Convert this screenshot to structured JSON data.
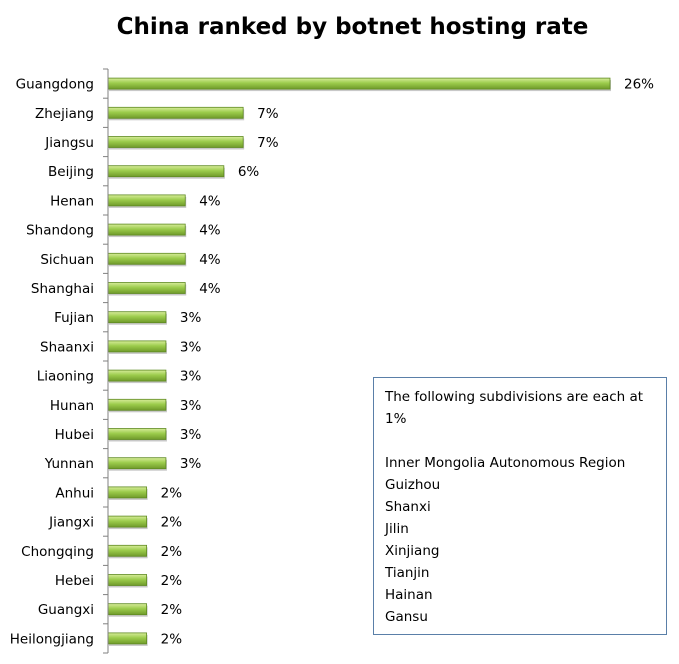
{
  "chart_data": {
    "type": "bar",
    "orientation": "horizontal",
    "title": "China ranked by botnet hosting rate",
    "categories": [
      "Guangdong",
      "Zhejiang",
      "Jiangsu",
      "Beijing",
      "Henan",
      "Shandong",
      "Sichuan",
      "Shanghai",
      "Fujian",
      "Shaanxi",
      "Liaoning",
      "Hunan",
      "Hubei",
      "Yunnan",
      "Anhui",
      "Jiangxi",
      "Chongqing",
      "Hebei",
      "Guangxi",
      "Heilongjiang"
    ],
    "values": [
      26,
      7,
      7,
      6,
      4,
      4,
      4,
      4,
      3,
      3,
      3,
      3,
      3,
      3,
      2,
      2,
      2,
      2,
      2,
      2
    ],
    "value_labels": [
      "26%",
      "7%",
      "7%",
      "6%",
      "4%",
      "4%",
      "4%",
      "4%",
      "3%",
      "3%",
      "3%",
      "3%",
      "3%",
      "3%",
      "2%",
      "2%",
      "2%",
      "2%",
      "2%",
      "2%"
    ],
    "xlabel": "",
    "ylabel": "",
    "xlim": [
      0,
      26
    ],
    "grid": false,
    "bar_color": "#9ccc4c"
  },
  "note": {
    "heading": "The following subdivisions  are each at 1%",
    "items": [
      "Inner Mongolia Autonomous  Region",
      "Guizhou",
      "Shanxi",
      "Jilin",
      "Xinjiang",
      "Tianjin",
      "Hainan",
      "Gansu"
    ]
  }
}
